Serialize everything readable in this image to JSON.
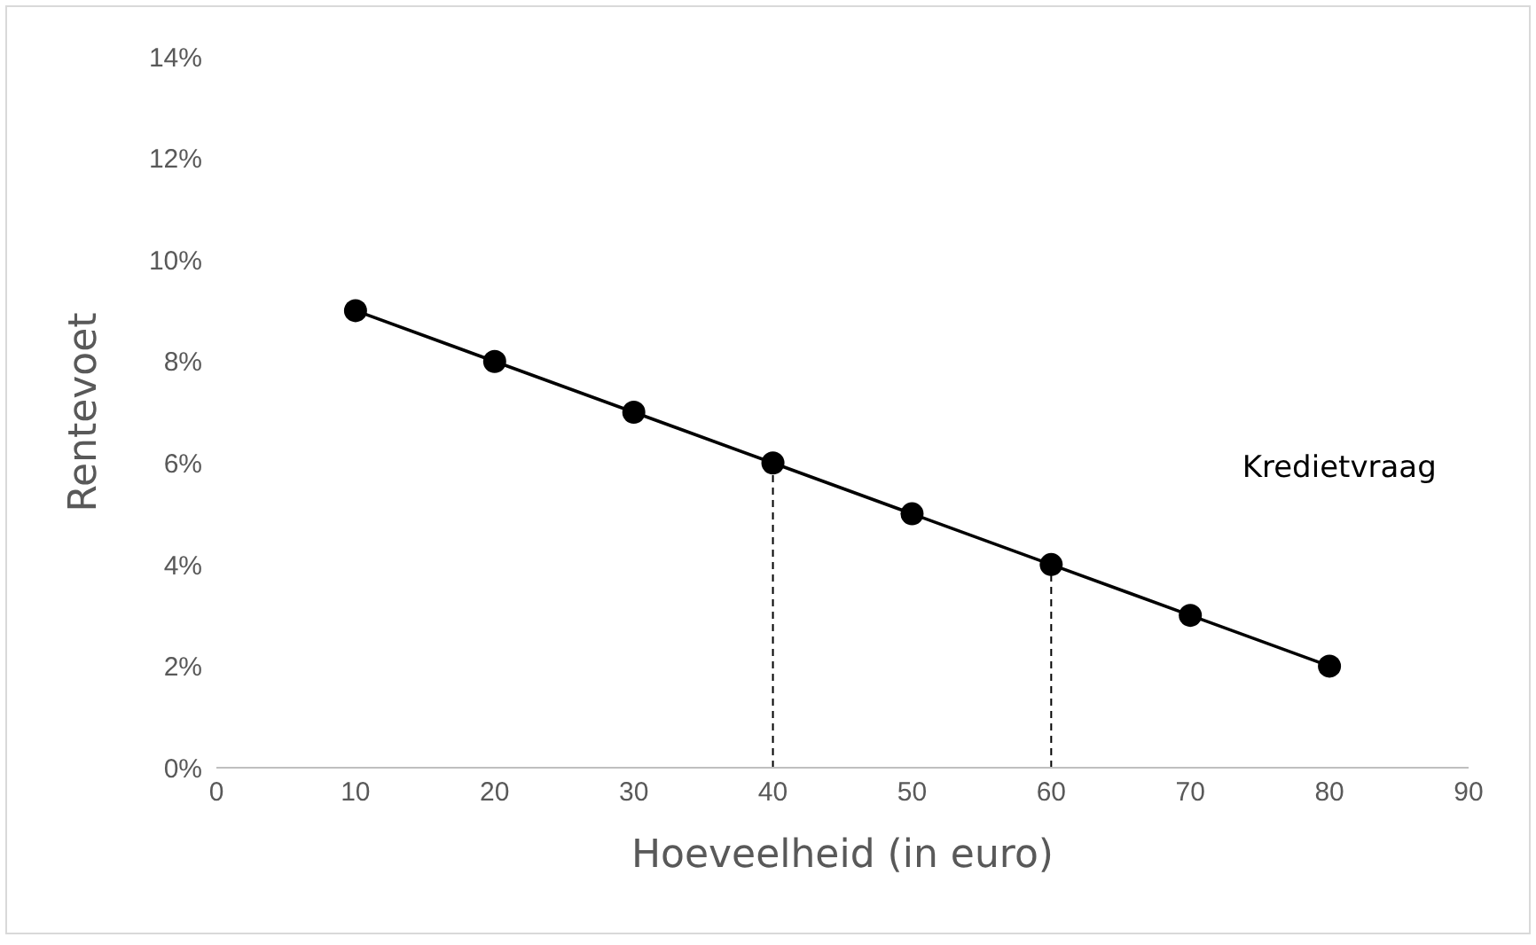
{
  "chart_data": {
    "type": "line",
    "xlabel": "Hoeveelheid (in euro)",
    "ylabel": "Rentevoet",
    "x": [
      10,
      20,
      30,
      40,
      50,
      60,
      70,
      80
    ],
    "series": [
      {
        "name": "Kredietvraag",
        "color": "#000000",
        "values": [
          9,
          8,
          7,
          6,
          5,
          4,
          3,
          2
        ]
      }
    ],
    "xlim": [
      0,
      90
    ],
    "xticks": [
      0,
      10,
      20,
      30,
      40,
      50,
      60,
      70,
      80,
      90
    ],
    "ylim": [
      0,
      14
    ],
    "yticks": [
      {
        "value": 0,
        "label": "0%"
      },
      {
        "value": 2,
        "label": "2%"
      },
      {
        "value": 4,
        "label": "4%"
      },
      {
        "value": 6,
        "label": "6%"
      },
      {
        "value": 8,
        "label": "8%"
      },
      {
        "value": 10,
        "label": "10%"
      },
      {
        "value": 12,
        "label": "12%"
      },
      {
        "value": 14,
        "label": "14%"
      }
    ],
    "ref_lines": [
      {
        "axis": "x",
        "value": 40,
        "line_style": "dashed",
        "color": "#000000"
      },
      {
        "axis": "x",
        "value": 60,
        "line_style": "dashed",
        "color": "#000000"
      }
    ],
    "marker": "circle",
    "line_style": "solid",
    "grid": false,
    "legend": false
  }
}
